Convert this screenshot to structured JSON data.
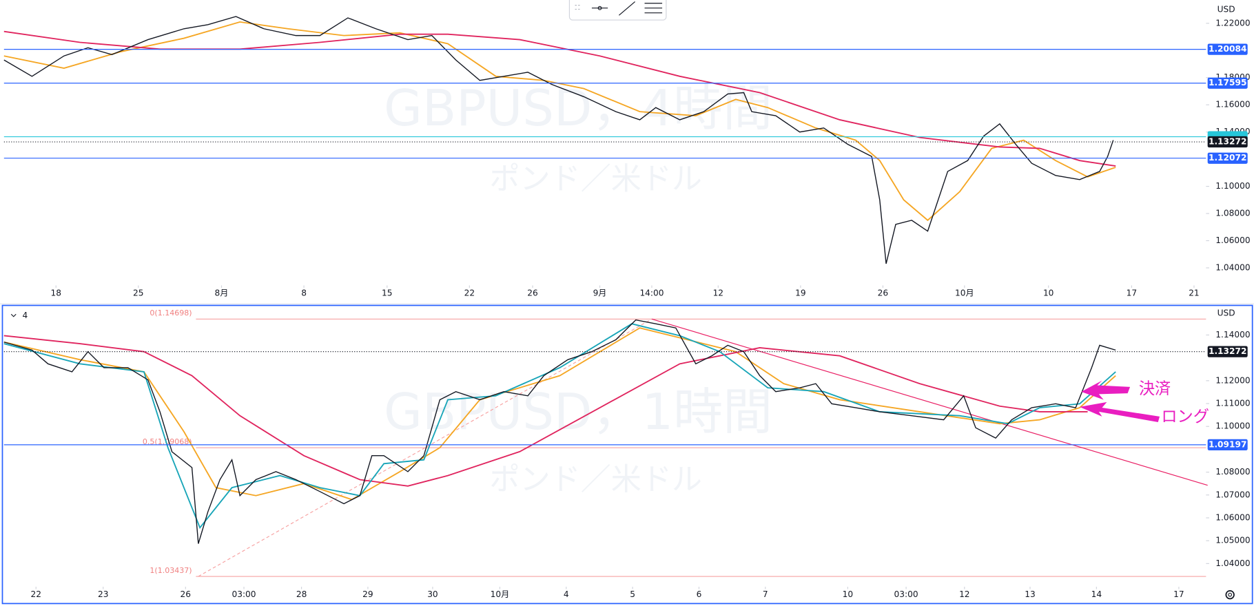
{
  "panels": [
    {
      "type": "line",
      "watermark": "GBPUSD，4時間",
      "watermark_sub": "ポンド／米ドル",
      "currency": "USD",
      "xlim": [
        0,
        150.3
      ],
      "ylim": [
        1.0312,
        1.2371
      ],
      "yticks": [
        {
          "value": 1.04,
          "label": "1.04000"
        },
        {
          "value": 1.06,
          "label": "1.06000"
        },
        {
          "value": 1.08,
          "label": "1.08000"
        },
        {
          "value": 1.1,
          "label": "1.10000"
        },
        {
          "value": 1.14,
          "label": "1.14000"
        },
        {
          "value": 1.16,
          "label": "1.16000"
        },
        {
          "value": 1.18,
          "label": "1.18000"
        },
        {
          "value": 1.22,
          "label": "1.22000"
        }
      ],
      "xticks": [
        {
          "value": 6.5,
          "label": "18"
        },
        {
          "value": 16.8,
          "label": "25"
        },
        {
          "value": 27.2,
          "label": "8月"
        },
        {
          "value": 37.5,
          "label": "8"
        },
        {
          "value": 47.9,
          "label": "15"
        },
        {
          "value": 58.2,
          "label": "22"
        },
        {
          "value": 66.1,
          "label": "26"
        },
        {
          "value": 74.5,
          "label": "9月"
        },
        {
          "value": 81,
          "label": "14:00"
        },
        {
          "value": 89.3,
          "label": "12"
        },
        {
          "value": 99.6,
          "label": "19"
        },
        {
          "value": 109.9,
          "label": "26"
        },
        {
          "value": 120.1,
          "label": "10月"
        },
        {
          "value": 130.6,
          "label": "10"
        },
        {
          "value": 141,
          "label": "17"
        },
        {
          "value": 148.8,
          "label": "21"
        }
      ],
      "levels": [
        {
          "value": 1.20084,
          "label": "1.20084",
          "color": "#2962ff"
        },
        {
          "value": 1.17595,
          "label": "1.17595",
          "color": "#2962ff"
        },
        {
          "value": 1.1365,
          "color": "#26c6da"
        },
        {
          "value": 1.12072,
          "label": "1.12072",
          "color": "#2962ff"
        },
        {
          "value": 1.13272,
          "label": "1.13272",
          "color": "#131722",
          "dotted": true
        }
      ],
      "series": [
        {
          "color": "#f5a623",
          "x": [
            0,
            7.5,
            14.5,
            22.5,
            29.5,
            35.5,
            42.5,
            49.5,
            55.5,
            61.5,
            67.5,
            72.5,
            79.5,
            86.5,
            91.5,
            95.5,
            101.5,
            106.5,
            109.5,
            112.5,
            115.5,
            119.5,
            123.5,
            127.5,
            131.5,
            135.5,
            139
          ],
          "values": [
            1.196,
            1.187,
            1.199,
            1.209,
            1.221,
            1.216,
            1.211,
            1.213,
            1.205,
            1.181,
            1.178,
            1.172,
            1.155,
            1.152,
            1.164,
            1.158,
            1.143,
            1.134,
            1.119,
            1.09,
            1.075,
            1.096,
            1.128,
            1.134,
            1.119,
            1.107,
            1.114
          ]
        },
        {
          "color": "#e0245e",
          "x": [
            0,
            9.5,
            19.5,
            29.5,
            39.5,
            49.5,
            55.5,
            64.5,
            74.5,
            84.5,
            94.5,
            104.5,
            114.5,
            124.5,
            129.5,
            134.5,
            139
          ],
          "values": [
            1.214,
            1.206,
            1.201,
            1.201,
            1.206,
            1.212,
            1.212,
            1.208,
            1.196,
            1.181,
            1.169,
            1.149,
            1.136,
            1.129,
            1.128,
            1.119,
            1.115
          ]
        },
        {
          "color": "#131722",
          "x": [
            0,
            3.5,
            7.5,
            10.5,
            13.5,
            18,
            22.5,
            25.5,
            29,
            32.5,
            36.5,
            39.5,
            43,
            46.5,
            50.5,
            53.5,
            56.5,
            59.5,
            62.5,
            65.5,
            68.5,
            72.5,
            76.5,
            79.5,
            81.5,
            84.5,
            87.5,
            90.5,
            92.5,
            93.5,
            96.5,
            99.5,
            102.5,
            105.5,
            108.5,
            109.5,
            110.3,
            111.5,
            113.5,
            115.5,
            118,
            120.5,
            122.5,
            124.5,
            126.5,
            128.5,
            131.5,
            134.5,
            137,
            138,
            138.7
          ],
          "values": [
            1.193,
            1.181,
            1.196,
            1.202,
            1.197,
            1.208,
            1.216,
            1.219,
            1.225,
            1.216,
            1.211,
            1.211,
            1.224,
            1.216,
            1.208,
            1.211,
            1.193,
            1.178,
            1.181,
            1.184,
            1.175,
            1.166,
            1.155,
            1.149,
            1.158,
            1.149,
            1.155,
            1.168,
            1.169,
            1.155,
            1.152,
            1.14,
            1.143,
            1.131,
            1.122,
            1.09,
            1.043,
            1.072,
            1.075,
            1.067,
            1.111,
            1.119,
            1.137,
            1.146,
            1.131,
            1.117,
            1.108,
            1.105,
            1.111,
            1.122,
            1.134
          ]
        }
      ]
    },
    {
      "type": "line",
      "badge": "4",
      "watermark": "GBPUSD，1時間",
      "watermark_sub": "ポンド／米ドル",
      "currency": "USD",
      "xlim": [
        0,
        150.3
      ],
      "ylim": [
        1.0295,
        1.1526
      ],
      "yticks": [
        {
          "value": 1.04,
          "label": "1.04000"
        },
        {
          "value": 1.05,
          "label": "1.05000"
        },
        {
          "value": 1.06,
          "label": "1.06000"
        },
        {
          "value": 1.07,
          "label": "1.07000"
        },
        {
          "value": 1.08,
          "label": "1.08000"
        },
        {
          "value": 1.1,
          "label": "1.10000"
        },
        {
          "value": 1.11,
          "label": "1.11000"
        },
        {
          "value": 1.12,
          "label": "1.12000"
        },
        {
          "value": 1.14,
          "label": "1.14000"
        }
      ],
      "xticks": [
        {
          "value": 4,
          "label": "22"
        },
        {
          "value": 12.4,
          "label": "23"
        },
        {
          "value": 22.7,
          "label": "26"
        },
        {
          "value": 30,
          "label": "03:00"
        },
        {
          "value": 37.2,
          "label": "28"
        },
        {
          "value": 45.5,
          "label": "29"
        },
        {
          "value": 53.6,
          "label": "30"
        },
        {
          "value": 62,
          "label": "10月"
        },
        {
          "value": 70.3,
          "label": "4"
        },
        {
          "value": 78.6,
          "label": "5"
        },
        {
          "value": 86.9,
          "label": "6"
        },
        {
          "value": 95.2,
          "label": "7"
        },
        {
          "value": 105.5,
          "label": "10"
        },
        {
          "value": 112.8,
          "label": "03:00"
        },
        {
          "value": 120.1,
          "label": "12"
        },
        {
          "value": 128.3,
          "label": "13"
        },
        {
          "value": 136.6,
          "label": "14"
        },
        {
          "value": 146.9,
          "label": "17"
        }
      ],
      "fib": [
        {
          "value": 1.14698,
          "label": "0(1.14698)"
        },
        {
          "value": 1.09068,
          "label": "0.5(1.09068)"
        },
        {
          "value": 1.03437,
          "label": "1(1.03437)"
        }
      ],
      "levels": [
        {
          "value": 1.09197,
          "label": "1.09197",
          "color": "#2962ff"
        },
        {
          "value": 1.13272,
          "label": "1.13272",
          "color": "#131722",
          "dotted": true
        }
      ],
      "annotations": [
        "決済",
        "ロング"
      ],
      "series": [
        {
          "color": "#f5a623",
          "x": [
            0,
            9.5,
            17.5,
            22.5,
            26.5,
            31.5,
            37.5,
            43.5,
            49.5,
            54.5,
            59.5,
            69.5,
            79.5,
            85.5,
            91.5,
            97.5,
            104.5,
            114.5,
            124.5,
            129.5,
            134.5,
            139
          ],
          "values": [
            1.1369,
            1.1292,
            1.1239,
            1.0977,
            1.0732,
            1.0697,
            1.075,
            1.068,
            1.0802,
            1.0907,
            1.1117,
            1.1222,
            1.1431,
            1.1379,
            1.1327,
            1.1187,
            1.1117,
            1.1064,
            1.1012,
            1.1029,
            1.1082,
            1.1222
          ]
        },
        {
          "color": "#e0245e",
          "x": [
            0,
            9.5,
            17.5,
            23.5,
            29.5,
            37.5,
            44.5,
            50.5,
            55.5,
            64.5,
            74.5,
            84.5,
            94.5,
            104.5,
            114.5,
            124.5,
            129.5,
            135.5
          ],
          "values": [
            1.1397,
            1.1362,
            1.1327,
            1.1222,
            1.1047,
            1.0872,
            1.0767,
            1.0739,
            1.0785,
            1.089,
            1.1082,
            1.1274,
            1.1344,
            1.1309,
            1.1187,
            1.1089,
            1.1064,
            1.1064
          ]
        },
        {
          "color": "#18a5b8",
          "x": [
            0,
            9.5,
            17.5,
            20.5,
            24.5,
            28.5,
            34.5,
            39.5,
            44.5,
            47.5,
            52.5,
            55.5,
            61.5,
            69.5,
            78.5,
            84.5,
            89.5,
            95.5,
            102.5,
            109.5,
            119.5,
            125.5,
            129.5,
            134.5,
            139
          ],
          "values": [
            1.1362,
            1.1274,
            1.1239,
            1.0907,
            1.0557,
            1.0732,
            1.0785,
            1.0732,
            1.0697,
            1.0837,
            1.0854,
            1.1117,
            1.1134,
            1.1257,
            1.1449,
            1.1397,
            1.1327,
            1.1169,
            1.1152,
            1.1064,
            1.1047,
            1.1012,
            1.1082,
            1.1099,
            1.1239
          ]
        },
        {
          "color": "#131722",
          "x": [
            0,
            3.5,
            5.5,
            8.5,
            10.5,
            12.5,
            15.5,
            18,
            19.5,
            21,
            23.5,
            24.3,
            25.5,
            27,
            28.5,
            29.5,
            31.5,
            34,
            36.5,
            39.5,
            42.5,
            44.5,
            46,
            47.5,
            50.5,
            52.5,
            54.5,
            56.5,
            59.5,
            62.5,
            65.5,
            67.5,
            70.5,
            73.5,
            76.5,
            79,
            81.5,
            84,
            86.5,
            88.5,
            90.5,
            92.5,
            94.5,
            96.5,
            99.5,
            101.5,
            103.5,
            106.5,
            109.5,
            113.5,
            117.5,
            120,
            121.5,
            124,
            126,
            128.5,
            131.5,
            134,
            135,
            136,
            137,
            139
          ],
          "values": [
            1.1369,
            1.1334,
            1.1274,
            1.1239,
            1.1327,
            1.1257,
            1.1257,
            1.1204,
            1.1064,
            1.0889,
            1.082,
            1.0487,
            1.0627,
            1.0767,
            1.0854,
            1.0697,
            1.0767,
            1.0802,
            1.0767,
            1.0715,
            1.0662,
            1.0697,
            1.0872,
            1.0872,
            1.0802,
            1.0872,
            1.1117,
            1.1152,
            1.1117,
            1.1152,
            1.1134,
            1.1222,
            1.1292,
            1.1327,
            1.1379,
            1.1466,
            1.1449,
            1.1431,
            1.1274,
            1.1309,
            1.1355,
            1.1327,
            1.1222,
            1.1152,
            1.1169,
            1.1187,
            1.1099,
            1.1082,
            1.1064,
            1.1047,
            1.1029,
            1.1134,
            1.0994,
            1.0949,
            1.1029,
            1.1082,
            1.1099,
            1.1082,
            1.1169,
            1.1257,
            1.1355,
            1.1334
          ]
        }
      ]
    }
  ]
}
